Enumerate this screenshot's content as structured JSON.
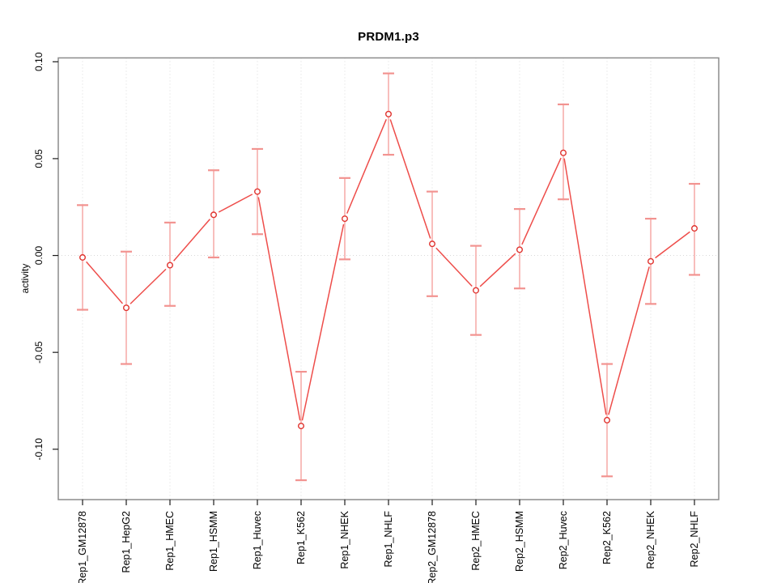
{
  "chart_data": {
    "type": "line",
    "error_bars": true,
    "title": "PRDM1.p3",
    "ylabel": "activity",
    "xlabel": "",
    "categories": [
      "Rep1_GM12878",
      "Rep1_HepG2",
      "Rep1_HMEC",
      "Rep1_HSMM",
      "Rep1_Huvec",
      "Rep1_K562",
      "Rep1_NHEK",
      "Rep1_NHLF",
      "Rep2_GM12878",
      "Rep2_HMEC",
      "Rep2_HSMM",
      "Rep2_Huvec",
      "Rep2_K562",
      "Rep2_NHEK",
      "Rep2_NHLF"
    ],
    "series": [
      {
        "name": "PRDM1.p3 activity",
        "values": [
          -0.001,
          -0.027,
          -0.005,
          0.021,
          0.033,
          -0.088,
          0.019,
          0.073,
          0.006,
          -0.018,
          0.003,
          0.053,
          -0.085,
          -0.003,
          0.014
        ],
        "error_high": [
          0.026,
          0.002,
          0.017,
          0.044,
          0.055,
          -0.06,
          0.04,
          0.094,
          0.033,
          0.005,
          0.024,
          0.078,
          -0.056,
          0.019,
          0.037
        ],
        "error_low": [
          -0.028,
          -0.056,
          -0.026,
          -0.001,
          0.011,
          -0.116,
          -0.002,
          0.052,
          -0.021,
          -0.041,
          -0.017,
          0.029,
          -0.114,
          -0.025,
          -0.01
        ]
      }
    ],
    "yticks": [
      -0.1,
      -0.05,
      0.0,
      0.05,
      0.1
    ],
    "ytick_labels": [
      "-0.10",
      "-0.05",
      "0.00",
      "0.05",
      "0.10"
    ],
    "ylim": [
      -0.126,
      0.102
    ],
    "grid": {
      "horizontal_at": [
        0
      ],
      "vertical": "every-category",
      "style": "dotted"
    },
    "legend": "none",
    "tick_label_rotation_deg": 90,
    "colors": {
      "point": "#e0342f",
      "line": "#ee4d4a",
      "error_bar": "#f6aeac",
      "error_bar_cap": "#f29390",
      "frame": "#8c8c8c",
      "grid": "#d9d9d9",
      "tick": "#1a1a1a",
      "text": "#000000"
    }
  }
}
